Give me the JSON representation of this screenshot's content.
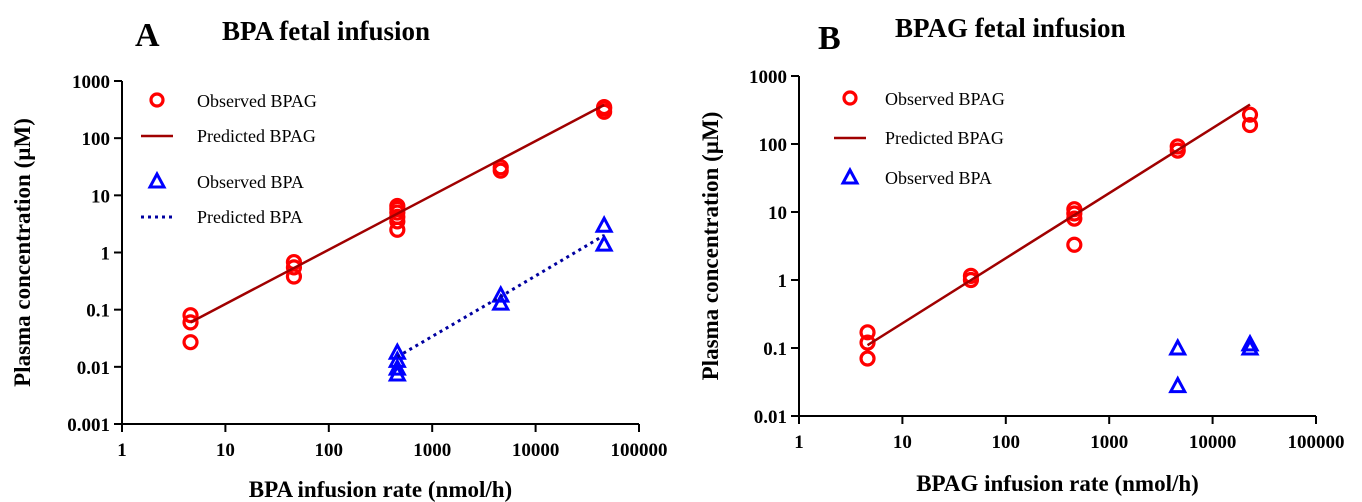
{
  "chart_data": [
    {
      "type": "scatter",
      "panel": "A",
      "title": "BPA fetal infusion",
      "xlabel": "BPA infusion rate (nmol/h)",
      "ylabel": "Plasma concentration (µM)",
      "xscale": "log",
      "yscale": "log",
      "xlim": [
        1,
        100000
      ],
      "ylim": [
        0.001,
        1000
      ],
      "xticks": [
        "1",
        "10",
        "100",
        "1000",
        "10000",
        "100000"
      ],
      "yticks": [
        "0.001",
        "0.01",
        "0.1",
        "1",
        "10",
        "100",
        "1000"
      ],
      "legend_position": "top-left",
      "colors": {
        "bpag": "#ff0000",
        "bpag_line": "#a00000",
        "bpa": "#0000ff",
        "bpa_line": "#0000a0"
      },
      "series": [
        {
          "name": "Observed BPAG",
          "kind": "circle",
          "x": [
            4.6,
            4.6,
            4.6,
            46,
            46,
            46,
            460,
            460,
            460,
            460,
            460,
            460,
            4600,
            4600,
            46000,
            46000,
            46000
          ],
          "y": [
            0.027,
            0.06,
            0.08,
            0.38,
            0.55,
            0.68,
            2.5,
            3.5,
            4.2,
            5.0,
            5.8,
            6.5,
            27,
            31,
            290,
            330,
            350
          ]
        },
        {
          "name": "Predicted BPAG",
          "kind": "line",
          "x": [
            4.6,
            46000
          ],
          "y": [
            0.06,
            380
          ]
        },
        {
          "name": "Observed BPA",
          "kind": "triangle",
          "x": [
            460,
            460,
            460,
            460,
            4600,
            4600,
            46000,
            46000
          ],
          "y": [
            0.0075,
            0.0095,
            0.013,
            0.018,
            0.13,
            0.18,
            1.4,
            3.0
          ]
        },
        {
          "name": "Predicted BPA",
          "kind": "dotted-line",
          "x": [
            460,
            4600,
            46000
          ],
          "y": [
            0.015,
            0.17,
            2.0
          ]
        }
      ]
    },
    {
      "type": "scatter",
      "panel": "B",
      "title": "BPAG fetal infusion",
      "xlabel": "BPAG infusion rate (nmol/h)",
      "ylabel": "Plasma concentration (µM)",
      "xscale": "log",
      "yscale": "log",
      "xlim": [
        1,
        100000
      ],
      "ylim": [
        0.01,
        1000
      ],
      "xticks": [
        "1",
        "10",
        "100",
        "1000",
        "10000",
        "100000"
      ],
      "yticks": [
        "0.01",
        "0.1",
        "1",
        "10",
        "100",
        "1000"
      ],
      "legend_position": "top-left",
      "colors": {
        "bpag": "#ff0000",
        "bpag_line": "#a00000",
        "bpa": "#0000ff"
      },
      "series": [
        {
          "name": "Observed BPAG",
          "kind": "circle",
          "x": [
            4.6,
            4.6,
            4.6,
            46,
            46,
            460,
            460,
            460,
            460,
            4600,
            4600,
            23000,
            23000
          ],
          "y": [
            0.07,
            0.12,
            0.17,
            1.0,
            1.15,
            3.3,
            8.0,
            9.5,
            11,
            80,
            92,
            190,
            270
          ]
        },
        {
          "name": "Predicted BPAG",
          "kind": "line",
          "x": [
            4.6,
            23000
          ],
          "y": [
            0.11,
            380
          ]
        },
        {
          "name": "Observed BPA",
          "kind": "triangle",
          "x": [
            4600,
            4600,
            23000,
            23000
          ],
          "y": [
            0.028,
            0.1,
            0.1,
            0.115
          ]
        }
      ]
    }
  ]
}
